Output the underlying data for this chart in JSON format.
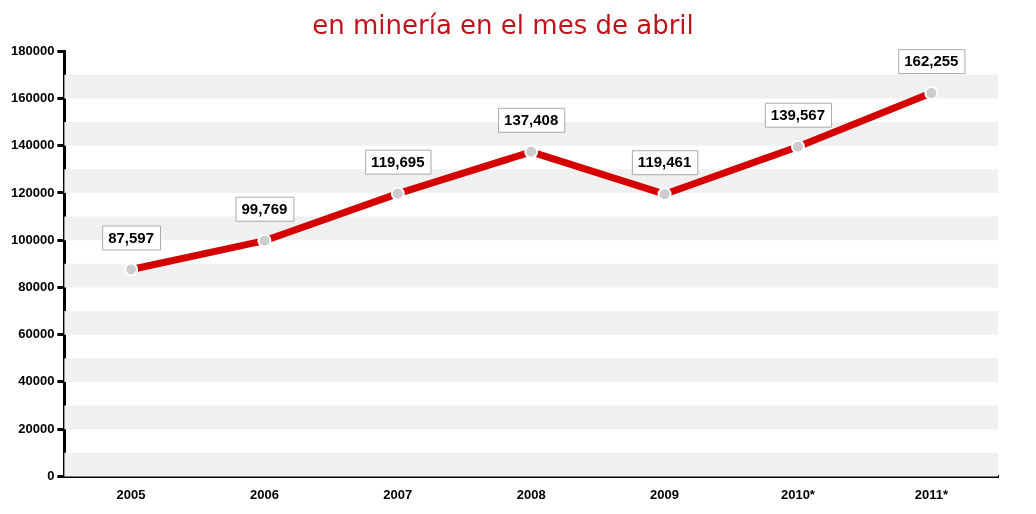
{
  "chart_data": {
    "type": "line",
    "title": "en minería en el mes de abril",
    "categories": [
      "2005",
      "2006",
      "2007",
      "2008",
      "2009",
      "2010*",
      "2011*"
    ],
    "series": [
      {
        "color": "#d40000",
        "values": [
          87597,
          99769,
          119695,
          137408,
          119461,
          139567,
          162255
        ],
        "value_labels": [
          "87,597",
          "99,769",
          "119,695",
          "137,408",
          "119,461",
          "139,567",
          "162,255"
        ]
      }
    ],
    "ylim": [
      0,
      180000
    ],
    "yticks": [
      0,
      20000,
      40000,
      60000,
      80000,
      100000,
      120000,
      140000,
      160000,
      180000
    ],
    "bands": [
      {
        "axis": "y",
        "from": 0,
        "to": 10000,
        "color": "#f0f0f0"
      },
      {
        "axis": "y",
        "from": 20000,
        "to": 30000,
        "color": "#f0f0f0"
      },
      {
        "axis": "y",
        "from": 40000,
        "to": 50000,
        "color": "#f0f0f0"
      },
      {
        "axis": "y",
        "from": 60000,
        "to": 70000,
        "color": "#f0f0f0"
      },
      {
        "axis": "y",
        "from": 80000,
        "to": 90000,
        "color": "#f0f0f0"
      },
      {
        "axis": "y",
        "from": 100000,
        "to": 110000,
        "color": "#f0f0f0"
      },
      {
        "axis": "y",
        "from": 120000,
        "to": 130000,
        "color": "#f0f0f0"
      },
      {
        "axis": "y",
        "from": 140000,
        "to": 150000,
        "color": "#f0f0f0"
      },
      {
        "axis": "y",
        "from": 160000,
        "to": 170000,
        "color": "#f0f0f0"
      }
    ],
    "grid": false,
    "legend": false,
    "marker": "circle"
  }
}
